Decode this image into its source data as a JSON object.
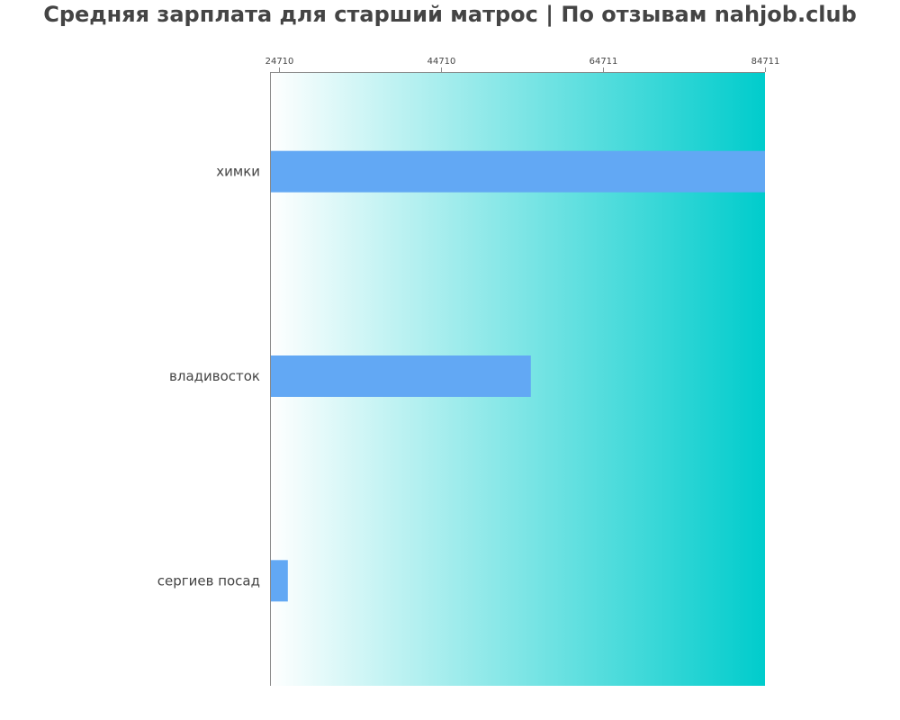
{
  "chart_data": {
    "type": "bar",
    "orientation": "horizontal",
    "title": "Средняя зарплата для старший матрос | По отзывам nahjob.club",
    "categories": [
      "химки",
      "владивосток",
      "сергиев посад"
    ],
    "values": [
      84711,
      55800,
      25800
    ],
    "xlim": [
      24710,
      84711
    ],
    "x_ticks": [
      24710,
      44710,
      64711,
      84711
    ],
    "x_tick_labels": [
      "24710",
      "44710",
      "64711",
      "84711"
    ],
    "xaxis_position": "top",
    "grid": false,
    "legend": "none",
    "colors": {
      "bar": "#62a8f4",
      "background_start": "#ffffff",
      "background_end": "#00cccc",
      "axis": "#888888"
    }
  }
}
